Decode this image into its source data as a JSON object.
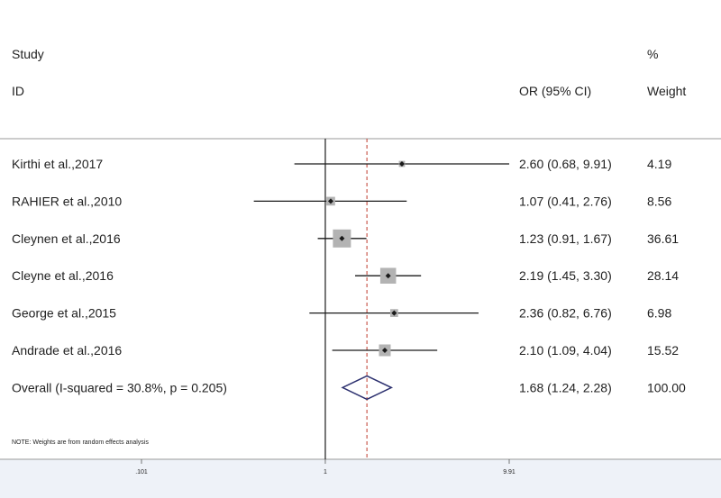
{
  "header": {
    "study_line1": "Study",
    "study_line2": "ID",
    "or_label": "OR (95% CI)",
    "weight_line1": "%",
    "weight_line2": "Weight"
  },
  "note": "NOTE: Weights are from random effects analysis",
  "chart_data": {
    "type": "forest",
    "scale": "log",
    "xlim": [
      0.101,
      9.91
    ],
    "ticks": [
      {
        "value": 0.101,
        "label": ".101"
      },
      {
        "value": 1,
        "label": "1"
      },
      {
        "value": 9.91,
        "label": "9.91"
      }
    ],
    "null_line": 1,
    "colors": {
      "line": "#1a1a1a",
      "box": "#b3b3b3",
      "diamond": "#2b2f6e",
      "overall_line": "#c0392b",
      "separator": "#9a9a9a",
      "background": "#eef2f8"
    },
    "studies": [
      {
        "label": "Kirthi et al.,2017",
        "or": 2.6,
        "lo": 0.68,
        "hi": 9.91,
        "or_text": "2.60 (0.68, 9.91)",
        "weight": 4.19,
        "weight_text": "4.19"
      },
      {
        "label": "RAHIER et al.,2010",
        "or": 1.07,
        "lo": 0.41,
        "hi": 2.76,
        "or_text": "1.07 (0.41, 2.76)",
        "weight": 8.56,
        "weight_text": "8.56"
      },
      {
        "label": "Cleynen et al.,2016",
        "or": 1.23,
        "lo": 0.91,
        "hi": 1.67,
        "or_text": "1.23 (0.91, 1.67)",
        "weight": 36.61,
        "weight_text": "36.61"
      },
      {
        "label": "Cleyne et al.,2016",
        "or": 2.19,
        "lo": 1.45,
        "hi": 3.3,
        "or_text": "2.19 (1.45, 3.30)",
        "weight": 28.14,
        "weight_text": "28.14"
      },
      {
        "label": "George et al.,2015",
        "or": 2.36,
        "lo": 0.82,
        "hi": 6.76,
        "or_text": "2.36 (0.82, 6.76)",
        "weight": 6.98,
        "weight_text": "6.98"
      },
      {
        "label": "Andrade et al.,2016",
        "or": 2.1,
        "lo": 1.09,
        "hi": 4.04,
        "or_text": "2.10 (1.09, 4.04)",
        "weight": 15.52,
        "weight_text": "15.52"
      }
    ],
    "overall": {
      "label": "Overall  (I-squared = 30.8%, p = 0.205)",
      "or": 1.68,
      "lo": 1.24,
      "hi": 2.28,
      "or_text": "1.68 (1.24, 2.28)",
      "weight_text": "100.00"
    }
  }
}
